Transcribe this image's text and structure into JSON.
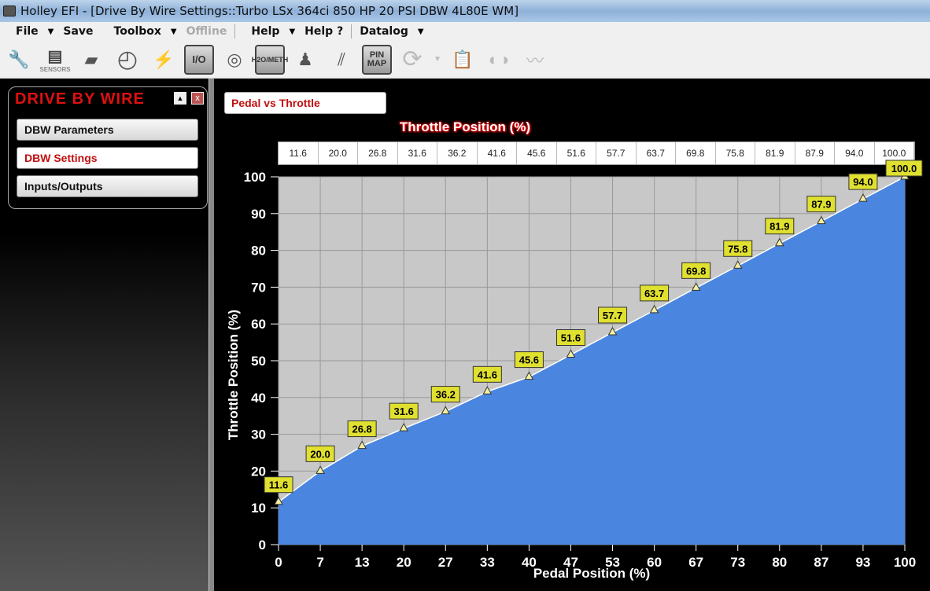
{
  "window": {
    "title": "Holley EFI - [Drive By Wire Settings::Turbo LSx 364ci 850 HP 20 PSI DBW 4L80E WM]"
  },
  "menu": {
    "file": "File",
    "save": "Save",
    "toolbox": "Toolbox",
    "offline": "Offline",
    "help": "Help",
    "help_q": "Help ?",
    "datalog": "Datalog"
  },
  "toolbar": {
    "sensors_label": "SENSORS",
    "io_label": "I/O",
    "meth_label": "H2O/METH",
    "pinmap_label": "PIN MAP",
    "icons": [
      "injector-icon",
      "sensors-icon",
      "ecu-icon",
      "gauge-icon",
      "spark-plug-icon",
      "io-icon",
      "turbo-icon",
      "water-meth-icon",
      "shifter-icon",
      "pedal-icon",
      "pin-map-icon",
      "refresh-icon",
      "clipboard-icon",
      "dashboard-icon",
      "heartbeat-icon"
    ]
  },
  "sidebar": {
    "title": "DRIVE BY WIRE",
    "items": [
      {
        "label": "DBW Parameters"
      },
      {
        "label": "DBW Settings",
        "active": true
      },
      {
        "label": "Inputs/Outputs"
      }
    ]
  },
  "main": {
    "chart_selector": "Pedal vs Throttle"
  },
  "chart_data": {
    "type": "area",
    "title": "Throttle Position (%)",
    "xlabel": "Pedal Position (%)",
    "ylabel": "Throttle Position (%)",
    "x": [
      0,
      7,
      13,
      20,
      27,
      33,
      40,
      47,
      53,
      60,
      67,
      73,
      80,
      87,
      93,
      100
    ],
    "x_tick_labels": [
      "0",
      "7",
      "13",
      "20",
      "27",
      "33",
      "40",
      "47",
      "53",
      "60",
      "67",
      "73",
      "80",
      "87",
      "93",
      "100"
    ],
    "values": [
      11.6,
      20.0,
      26.8,
      31.6,
      36.2,
      41.6,
      45.6,
      51.6,
      57.7,
      63.7,
      69.8,
      75.8,
      81.9,
      87.9,
      94.0,
      100.0
    ],
    "data_labels": [
      "11.6",
      "20.0",
      "26.8",
      "31.6",
      "36.2",
      "41.6",
      "45.6",
      "51.6",
      "57.7",
      "63.7",
      "69.8",
      "75.8",
      "81.9",
      "87.9",
      "94.0",
      "100.0"
    ],
    "y_ticks": [
      "0",
      "10",
      "20",
      "30",
      "40",
      "50",
      "60",
      "70",
      "80",
      "90",
      "100"
    ],
    "ylim": [
      0,
      100
    ],
    "xlim": [
      0,
      100
    ],
    "grid": true,
    "colors": {
      "fill": "#4a86e0",
      "plot_bg": "#c8c8c8",
      "label_bg": "#e0e030",
      "marker": "#f5f0a0"
    }
  }
}
